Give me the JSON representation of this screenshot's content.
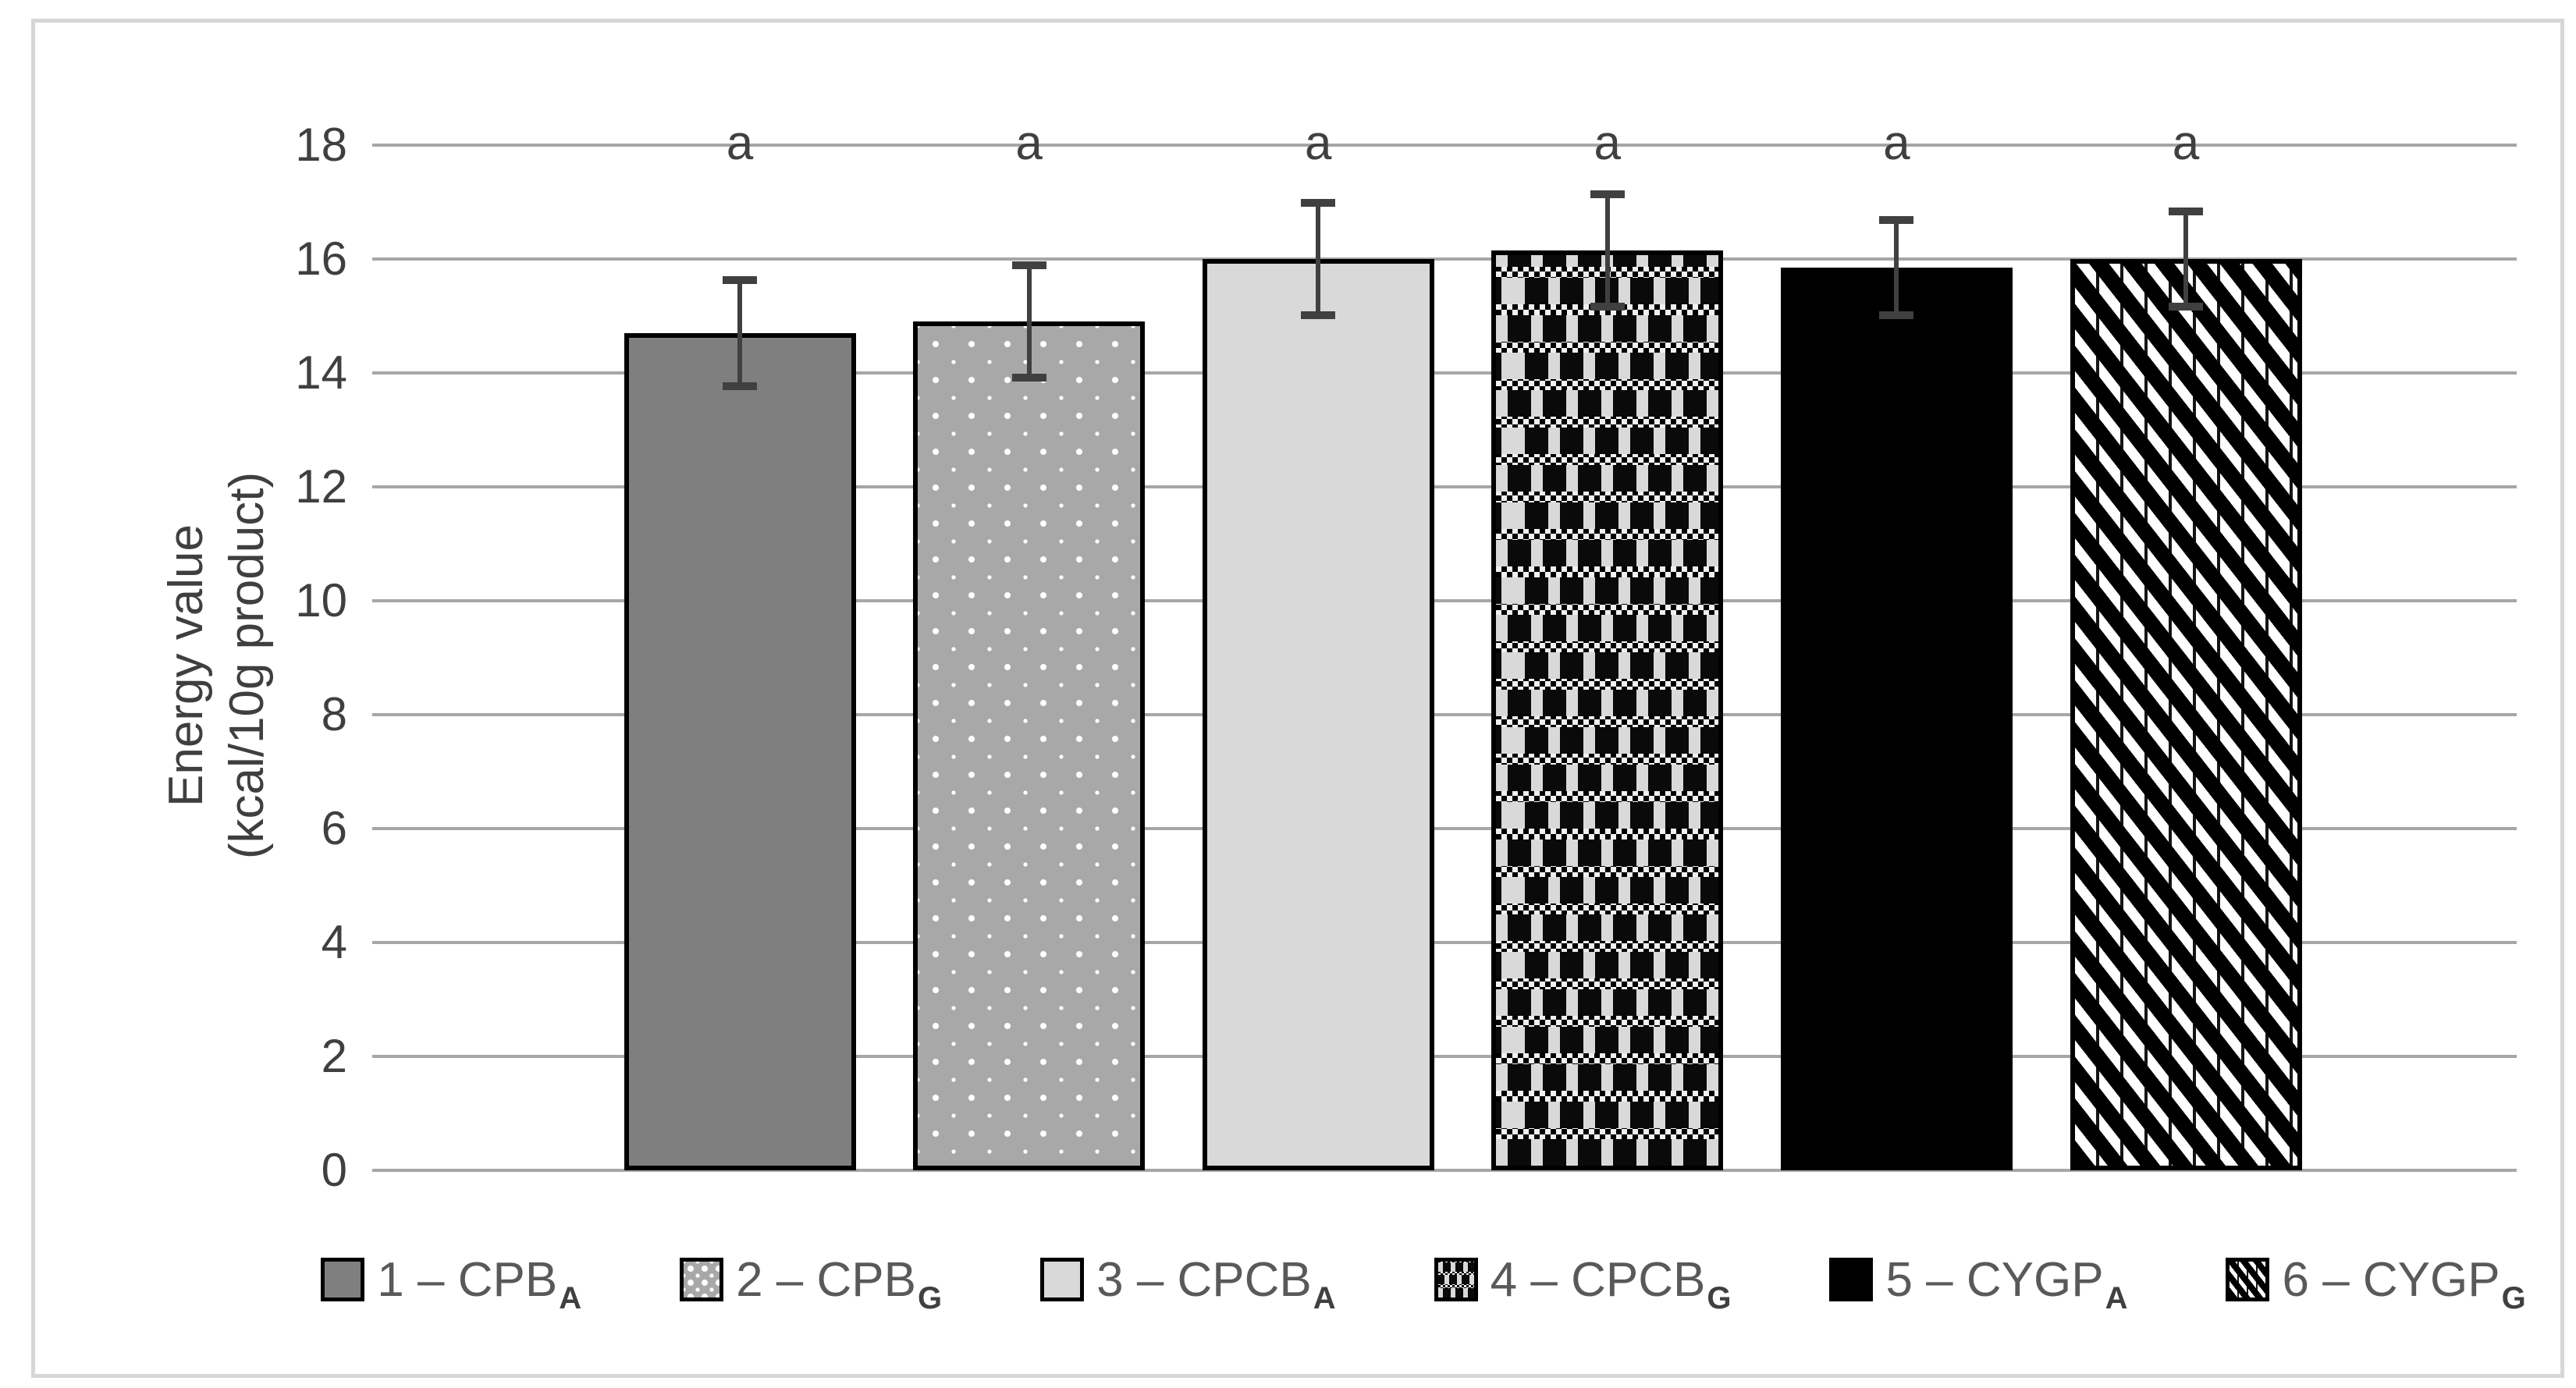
{
  "figure": {
    "background": "#ffffff",
    "border_color": "#d6d6d6"
  },
  "chart_data": {
    "type": "bar",
    "title": "",
    "ylabel_lines": [
      "Energy value",
      "(kcal/10g product)"
    ],
    "ylabel": "Energy value (kcal/10g product)",
    "xlabel": "",
    "ylim": [
      0,
      18
    ],
    "yticks": [
      0,
      2,
      4,
      6,
      8,
      10,
      12,
      14,
      16,
      18
    ],
    "grid": true,
    "legend_position": "bottom",
    "categories": [
      "1 – CPBA",
      "2 – CPBG",
      "3 – CPCBA",
      "4 – CPCBG",
      "5 – CYGPA",
      "6 – CYGPG"
    ],
    "series": [
      {
        "label_base": "1 – CPB",
        "label_sub": "A",
        "value": 14.7,
        "err_up": 0.95,
        "err_down": 0.95,
        "letter": "a",
        "pattern": "solid-darkgray",
        "fill": "#7f7f7f"
      },
      {
        "label_base": "2 – CPB",
        "label_sub": "G",
        "value": 14.9,
        "err_up": 1.0,
        "err_down": 1.0,
        "letter": "a",
        "pattern": "white-dots-on-gray",
        "fill": "#a8a8a8"
      },
      {
        "label_base": "3 – CPCB",
        "label_sub": "A",
        "value": 16.0,
        "err_up": 1.0,
        "err_down": 1.0,
        "letter": "a",
        "pattern": "solid-lightgray",
        "fill": "#d9d9d9"
      },
      {
        "label_base": "4 – CPCB",
        "label_sub": "G",
        "value": 16.15,
        "err_up": 1.0,
        "err_down": 1.0,
        "letter": "a",
        "pattern": "black-weave-check",
        "fill": "#000000"
      },
      {
        "label_base": "5 – CYGP",
        "label_sub": "A",
        "value": 15.85,
        "err_up": 0.85,
        "err_down": 0.85,
        "letter": "a",
        "pattern": "solid-black",
        "fill": "#000000"
      },
      {
        "label_base": "6 – CYGP",
        "label_sub": "G",
        "value": 16.0,
        "err_up": 0.85,
        "err_down": 0.85,
        "letter": "a",
        "pattern": "black-diagonal-stripes",
        "fill": "#000000"
      }
    ],
    "colors": {
      "gridline": "#a6a6a6",
      "tick_label": "#3f3f3f",
      "axis_title": "#3f3f3f",
      "legend_text": "#595959",
      "error_bar": "#404040",
      "bar_border": "#000000",
      "significance_letter": "#404040"
    }
  }
}
